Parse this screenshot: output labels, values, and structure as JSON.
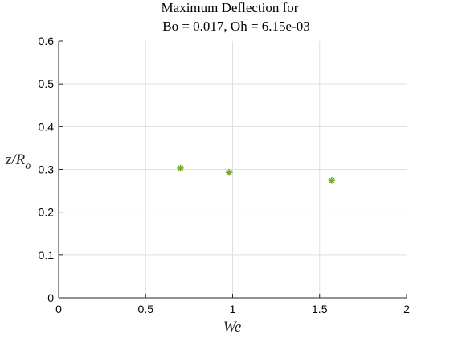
{
  "chart_data": {
    "type": "scatter",
    "title": [
      "Maximum Deflection for",
      "Bo = 0.017, Oh = 6.15e-03"
    ],
    "xlabel": "We",
    "ylabel": "z/R",
    "ylabel_subscript": "o",
    "xlim": [
      0,
      2
    ],
    "ylim": [
      0,
      0.6
    ],
    "xticks": [
      0,
      0.5,
      1,
      1.5,
      2
    ],
    "xtick_labels": [
      "0",
      "0.5",
      "1",
      "1.5",
      "2"
    ],
    "yticks": [
      0,
      0.1,
      0.2,
      0.3,
      0.4,
      0.5,
      0.6
    ],
    "ytick_labels": [
      "0",
      "0.1",
      "0.2",
      "0.3",
      "0.4",
      "0.5",
      "0.6"
    ],
    "grid": true,
    "series": [
      {
        "marker": "asterisk",
        "color": "#77AC30",
        "points": [
          {
            "x": 0.7,
            "y": 0.303
          },
          {
            "x": 0.98,
            "y": 0.293
          },
          {
            "x": 1.57,
            "y": 0.274
          }
        ]
      }
    ]
  }
}
